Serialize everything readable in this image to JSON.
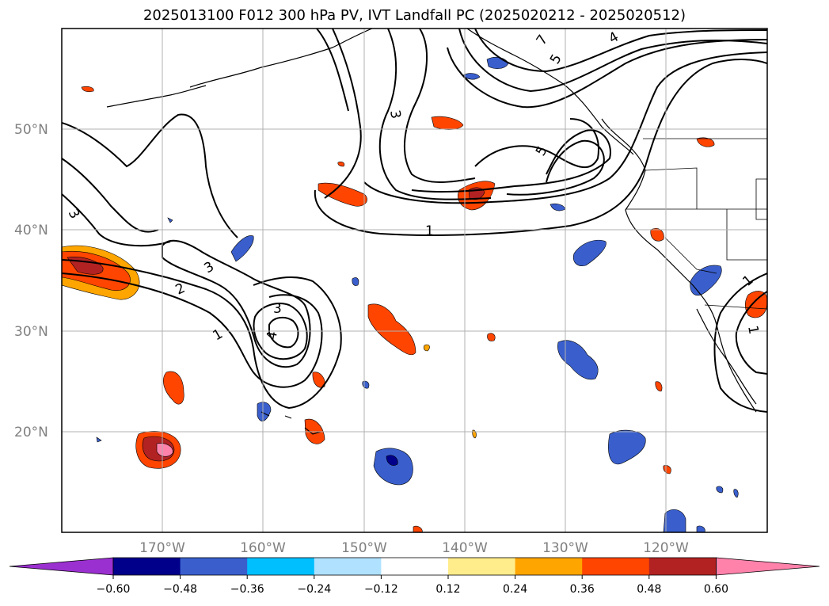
{
  "title": "2025013100 F012 300 hPa PV, IVT Landfall PC (2025020212 - 2025020512)",
  "lat_labels": [
    "50°N",
    "40°N",
    "30°N",
    "20°N"
  ],
  "lon_labels": [
    "170°W",
    "160°W",
    "150°W",
    "140°W",
    "130°W",
    "120°W"
  ],
  "colorbar": {
    "colors": [
      "#9b30d0",
      "#00008b",
      "#3a5fcd",
      "#00bfff",
      "#b0e2ff",
      "#ffffff",
      "#ffec8b",
      "#ffa500",
      "#ff4500",
      "#b22222",
      "#ff82ab"
    ],
    "tick_labels": [
      "−0.60",
      "−0.48",
      "−0.36",
      "−0.24",
      "−0.12",
      "0.12",
      "0.24",
      "0.36",
      "0.48",
      "0.60"
    ]
  },
  "contour_labels": [
    "1",
    "2",
    "3",
    "3",
    "4",
    "3",
    "3",
    "5",
    "5",
    "4",
    "7",
    "1",
    "1",
    "1"
  ],
  "map_extent": {
    "lon": [
      -180,
      -110
    ],
    "lat": [
      10,
      60
    ]
  }
}
